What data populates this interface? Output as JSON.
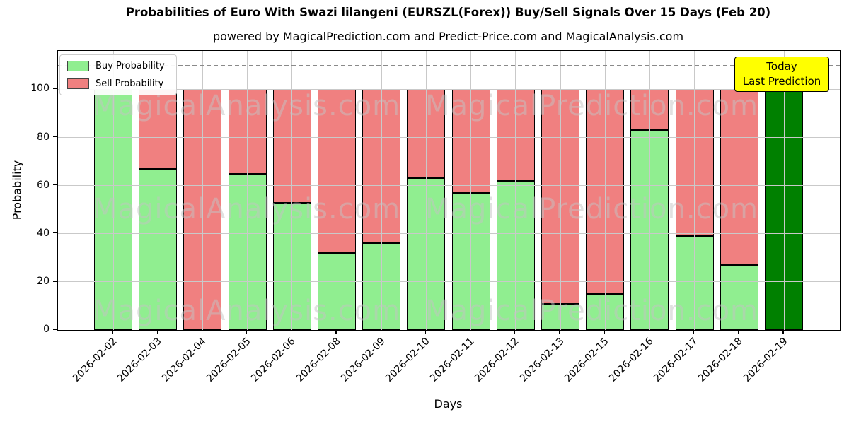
{
  "annotation": {
    "line1": "Today",
    "line2": "Last Prediction"
  },
  "watermarks": [
    "MagicalAnalysis.com",
    "MagicalPrediction.com"
  ],
  "colors": {
    "buy": "#90ee90",
    "sell": "#f08080",
    "today_bar": "#008000",
    "annotation_bg": "#ffff00",
    "grid": "#c9c9c9",
    "dashed_line": "#8a8a8a",
    "bar_edge": "#000000"
  },
  "chart_data": {
    "type": "bar",
    "stacked": true,
    "title": "Probabilities of Euro With Swazi lilangeni (EURSZL(Forex)) Buy/Sell Signals Over 15 Days (Feb 20)",
    "subtitle": "powered by MagicalPrediction.com and Predict-Price.com and MagicalAnalysis.com",
    "xlabel": "Days",
    "ylabel": "Probability",
    "categories": [
      "2026-02-02",
      "2026-02-03",
      "2026-02-04",
      "2026-02-05",
      "2026-02-06",
      "2026-02-08",
      "2026-02-09",
      "2026-02-10",
      "2026-02-11",
      "2026-02-12",
      "2026-02-13",
      "2026-02-15",
      "2026-02-16",
      "2026-02-17",
      "2026-02-18",
      "2026-02-19"
    ],
    "series": [
      {
        "name": "Buy Probability",
        "values": [
          100,
          67,
          0,
          65,
          53,
          32,
          36,
          63,
          57,
          62,
          11,
          15,
          83,
          39,
          27,
          100
        ]
      },
      {
        "name": "Sell Probability",
        "values": [
          0,
          33,
          100,
          35,
          47,
          68,
          64,
          37,
          43,
          38,
          89,
          85,
          17,
          61,
          73,
          0
        ]
      }
    ],
    "yticks": [
      0,
      20,
      40,
      60,
      80,
      100
    ],
    "ylim": [
      0,
      116
    ],
    "dashed_line_y": 110,
    "grid": true,
    "legend_position": "upper left",
    "highlight_last_bar": true
  }
}
